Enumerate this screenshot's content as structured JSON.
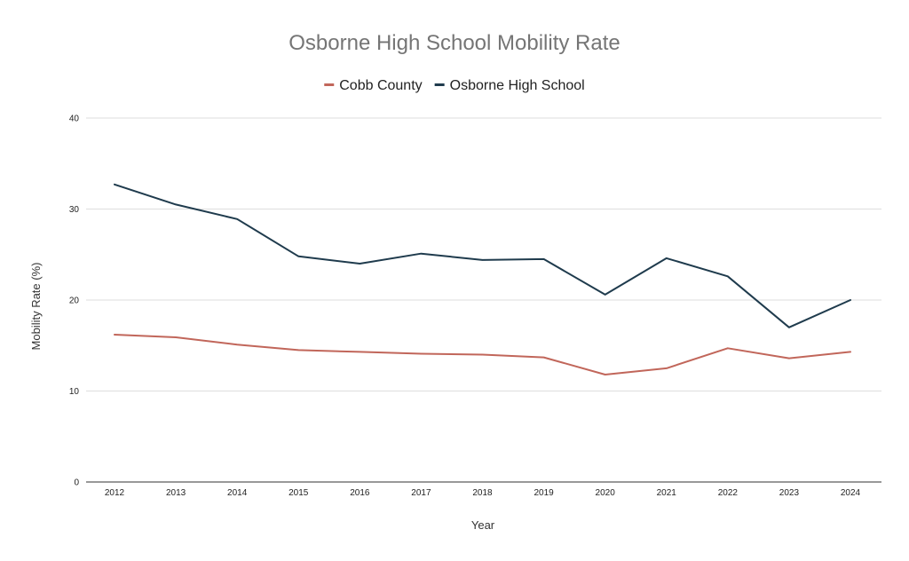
{
  "chart_data": {
    "type": "line",
    "title": "Osborne High School Mobility Rate",
    "xlabel": "Year",
    "ylabel": "Mobility Rate (%)",
    "categories": [
      "2012",
      "2013",
      "2014",
      "2015",
      "2016",
      "2017",
      "2018",
      "2019",
      "2020",
      "2021",
      "2022",
      "2023",
      "2024"
    ],
    "ylim": [
      0,
      40
    ],
    "yticks": [
      0,
      10,
      20,
      30,
      40
    ],
    "grid": true,
    "legend": "top-center",
    "series": [
      {
        "name": "Cobb County",
        "color": "#c1665a",
        "values": [
          16.2,
          15.9,
          15.1,
          14.5,
          14.3,
          14.1,
          14.0,
          13.7,
          11.8,
          12.5,
          14.7,
          13.6,
          14.3
        ]
      },
      {
        "name": "Osborne High School",
        "color": "#1f3b4d",
        "values": [
          32.7,
          30.5,
          28.9,
          24.8,
          24.0,
          25.1,
          24.4,
          24.5,
          20.6,
          24.6,
          22.6,
          17.0,
          20.0
        ]
      }
    ]
  }
}
